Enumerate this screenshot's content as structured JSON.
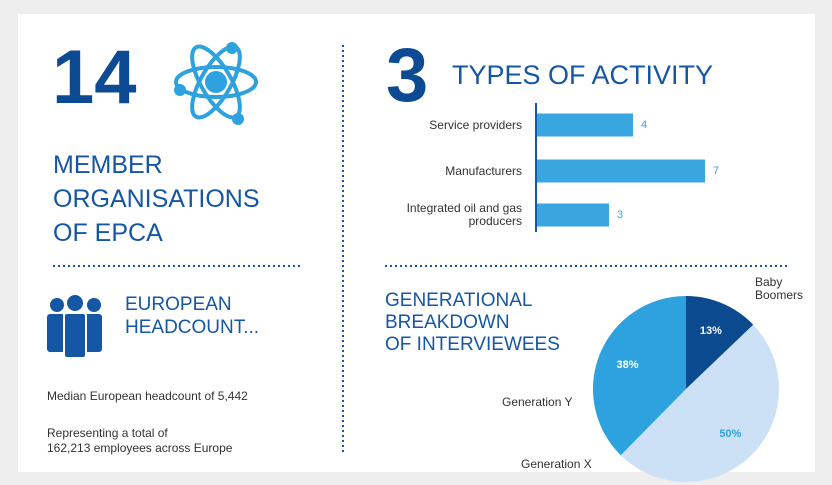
{
  "members": {
    "number": "14",
    "label": [
      "MEMBER",
      "ORGANISATIONS",
      "OF EPCA"
    ]
  },
  "headcount": {
    "title": [
      "EUROPEAN",
      "HEADCOUNT..."
    ],
    "median": "Median European headcount of 5,442",
    "total": [
      "Representing a total of",
      "162,213 employees across Europe"
    ]
  },
  "chart_data": [
    {
      "type": "bar",
      "number": "3",
      "title": "TYPES OF ACTIVITY",
      "categories": [
        "Service providers",
        "Manufacturers",
        "Integrated oil and gas producers"
      ],
      "values": [
        4,
        7,
        3
      ],
      "color": "#3aa6e0"
    },
    {
      "type": "pie",
      "title": [
        "GENERATIONAL",
        "BREAKDOWN",
        "OF INTERVIEWEES"
      ],
      "categories": [
        "Baby Boomers",
        "Generation X",
        "Generation Y"
      ],
      "values": [
        13,
        50,
        38
      ],
      "value_labels": [
        "13%",
        "50%",
        "38%"
      ],
      "colors": [
        "#0b4a8f",
        "#cde1f6",
        "#2ea2de"
      ]
    }
  ]
}
